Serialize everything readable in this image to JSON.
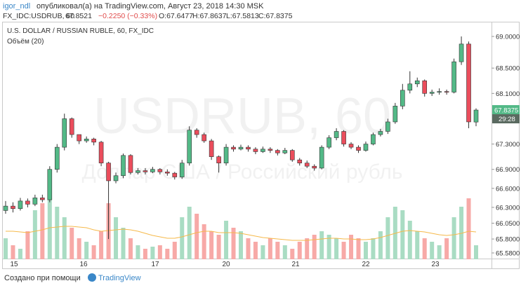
{
  "header": {
    "user": "igor_ndl",
    "published": "опубликовал(а) на TradingView.com, Август 23, 2018 14:30 MSK",
    "symbol": "FX_IDC:USDRUB, 60",
    "last": "67.8521",
    "change": "−0.2250 (−0.33%)",
    "o": "O:67.6477",
    "h": "H:67.8637",
    "l": "L:67.5813",
    "c": "C:67.8375"
  },
  "chart_data": {
    "type": "candlestick",
    "title": "U.S. DOLLAR / RUSSIAN RUBLE, 60, FX_IDC",
    "volume_label": "Объём (20)",
    "watermark": "USDRUB, 60",
    "watermark_sub": "Доллар США / Российский рубль",
    "up_color": "#53b987",
    "down_color": "#eb4d5c",
    "volume_up_color": "#a9dcc3",
    "volume_down_color": "#f7a9a7",
    "volume_ma_color": "#f6b94a",
    "open": [
      66.25,
      66.32,
      66.28,
      66.4,
      66.35,
      66.45,
      66.42,
      66.9,
      67.25,
      67.7,
      67.45,
      67.35,
      67.38,
      67.33,
      67.0,
      66.72,
      66.8,
      67.12,
      66.85,
      66.88,
      66.86,
      66.9,
      66.86,
      66.84,
      66.78,
      67.0,
      67.52,
      67.45,
      67.35,
      67.1,
      67.0,
      67.25,
      67.22,
      67.25,
      67.22,
      67.18,
      67.22,
      67.2,
      67.16,
      67.2,
      67.05,
      67.0,
      66.95,
      66.92,
      67.25,
      67.4,
      67.5,
      67.3,
      67.25,
      67.2,
      67.3,
      67.45,
      67.5,
      67.65,
      67.9,
      68.15,
      68.25,
      68.3,
      68.1,
      68.12,
      68.13,
      68.12,
      68.6,
      68.88,
      67.6477
    ],
    "high": [
      66.4,
      66.38,
      66.45,
      66.44,
      66.5,
      66.5,
      66.95,
      67.3,
      67.78,
      67.72,
      67.42,
      67.42,
      67.4,
      67.35,
      67.02,
      66.85,
      67.15,
      67.14,
      66.92,
      66.92,
      66.94,
      66.92,
      66.9,
      66.86,
      67.05,
      67.58,
      67.55,
      67.48,
      67.38,
      67.12,
      67.3,
      67.28,
      67.29,
      67.28,
      67.25,
      67.26,
      67.25,
      67.22,
      67.24,
      67.22,
      67.08,
      67.04,
      66.98,
      67.28,
      67.44,
      67.55,
      67.52,
      67.33,
      67.28,
      67.34,
      67.48,
      67.54,
      67.7,
      67.95,
      68.25,
      68.45,
      68.35,
      68.32,
      68.16,
      68.18,
      68.16,
      68.65,
      69.0,
      68.92,
      67.8637
    ],
    "low": [
      66.2,
      66.22,
      66.25,
      66.3,
      66.32,
      66.38,
      66.38,
      66.85,
      67.2,
      67.4,
      67.3,
      67.32,
      67.28,
      66.95,
      65.8,
      66.68,
      66.76,
      66.82,
      66.82,
      66.82,
      66.84,
      66.82,
      66.8,
      66.74,
      66.75,
      66.96,
      67.4,
      67.32,
      67.05,
      66.85,
      66.96,
      67.18,
      67.2,
      67.18,
      67.14,
      67.16,
      67.16,
      67.12,
      67.14,
      67.02,
      66.96,
      66.92,
      66.88,
      66.9,
      67.22,
      67.36,
      67.26,
      67.22,
      67.16,
      67.18,
      67.28,
      67.42,
      67.46,
      67.62,
      67.85,
      68.1,
      68.2,
      68.05,
      68.06,
      68.08,
      68.08,
      68.1,
      68.55,
      67.55,
      67.5813
    ],
    "close": [
      66.32,
      66.28,
      66.4,
      66.35,
      66.45,
      66.42,
      66.9,
      67.25,
      67.7,
      67.45,
      67.35,
      67.38,
      67.33,
      67.0,
      66.72,
      66.8,
      67.12,
      66.85,
      66.88,
      66.86,
      66.9,
      66.86,
      66.84,
      66.78,
      67.0,
      67.52,
      67.45,
      67.35,
      67.1,
      67.0,
      67.25,
      67.22,
      67.25,
      67.22,
      67.18,
      67.22,
      67.2,
      67.16,
      67.2,
      67.05,
      67.0,
      66.95,
      66.92,
      67.25,
      67.4,
      67.5,
      67.3,
      67.25,
      67.2,
      67.3,
      67.45,
      67.5,
      67.65,
      67.9,
      68.15,
      68.25,
      68.3,
      68.1,
      68.12,
      68.13,
      68.12,
      68.6,
      68.88,
      67.65,
      67.8375
    ],
    "volume": [
      30,
      20,
      15,
      40,
      70,
      80,
      85,
      75,
      60,
      45,
      30,
      25,
      20,
      40,
      80,
      60,
      45,
      30,
      20,
      15,
      18,
      20,
      15,
      25,
      60,
      75,
      65,
      50,
      40,
      35,
      55,
      45,
      40,
      30,
      25,
      20,
      30,
      25,
      20,
      15,
      25,
      30,
      35,
      40,
      35,
      30,
      25,
      35,
      30,
      25,
      30,
      40,
      60,
      75,
      70,
      55,
      40,
      30,
      25,
      20,
      30,
      60,
      75,
      87,
      20
    ],
    "volume_ma": [
      40,
      40,
      39,
      38,
      40,
      42,
      45,
      46,
      47,
      47,
      46,
      45,
      42,
      40,
      41,
      42,
      43,
      42,
      40,
      37,
      34,
      32,
      30,
      30,
      32,
      35,
      38,
      40,
      40,
      38,
      38,
      38,
      37,
      35,
      33,
      31,
      30,
      29,
      28,
      27,
      27,
      27,
      28,
      29,
      30,
      30,
      29,
      29,
      28,
      28,
      29,
      31,
      34,
      37,
      40,
      41,
      40,
      39,
      37,
      35,
      34,
      35,
      37,
      40,
      39
    ],
    "ylim": [
      65.48,
      69.155
    ],
    "yticks": [
      {
        "value": 69,
        "label": "69.0000"
      },
      {
        "value": 68.5,
        "label": "68.5000"
      },
      {
        "value": 68.1,
        "label": "68.1000"
      },
      {
        "value": 67.3,
        "label": "67.3000"
      },
      {
        "value": 66.9,
        "label": "66.9000"
      },
      {
        "value": 66.6,
        "label": "66.6000"
      },
      {
        "value": 66.3,
        "label": "66.3000"
      },
      {
        "value": 66.05,
        "label": "66.0500"
      },
      {
        "value": 65.8,
        "label": "65.8000"
      },
      {
        "value": 65.58,
        "label": "65.5800"
      }
    ],
    "last_price_label": "67.8375",
    "countdown": "29:28",
    "x_labels": [
      "15",
      "16",
      "17",
      "20",
      "21",
      "22",
      "23"
    ]
  },
  "footer": {
    "text": "Создано при помощи",
    "brand": "TradingView"
  }
}
